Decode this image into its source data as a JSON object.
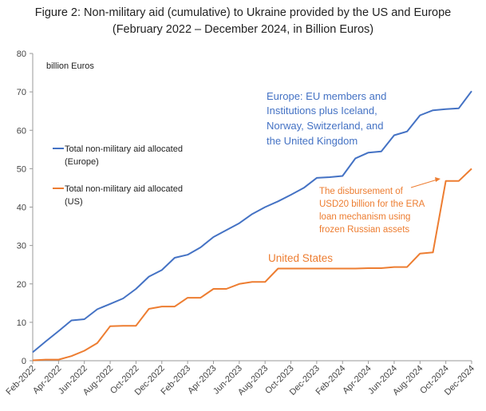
{
  "chart_data": {
    "type": "line",
    "title": "Figure 2: Non-military aid (cumulative) to Ukraine provided by the US and Europe",
    "subtitle": "(February 2022 – December 2024, in Billion Euros)",
    "ylabel": "billion Euros",
    "ylim": [
      0,
      80
    ],
    "yticks": [
      0,
      10,
      20,
      30,
      40,
      50,
      60,
      70,
      80
    ],
    "x": [
      "Feb-2022",
      "Mar-2022",
      "Apr-2022",
      "May-2022",
      "Jun-2022",
      "Jul-2022",
      "Aug-2022",
      "Sep-2022",
      "Oct-2022",
      "Nov-2022",
      "Dec-2022",
      "Jan-2023",
      "Feb-2023",
      "Mar-2023",
      "Apr-2023",
      "May-2023",
      "Jun-2023",
      "Jul-2023",
      "Aug-2023",
      "Sep-2023",
      "Oct-2023",
      "Nov-2023",
      "Dec-2023",
      "Jan-2024",
      "Feb-2024",
      "Mar-2024",
      "Apr-2024",
      "May-2024",
      "Jun-2024",
      "Jul-2024",
      "Aug-2024",
      "Sep-2024",
      "Oct-2024",
      "Nov-2024",
      "Dec-2024"
    ],
    "xtick_labels": [
      "Feb-2022",
      "Apr-2022",
      "Jun-2022",
      "Aug-2022",
      "Oct-2022",
      "Dec-2022",
      "Feb-2023",
      "Apr-2023",
      "Jun-2023",
      "Aug-2023",
      "Oct-2023",
      "Dec-2023",
      "Feb-2024",
      "Apr-2024",
      "Jun-2024",
      "Aug-2024",
      "Oct-2024",
      "Dec-2024"
    ],
    "series": [
      {
        "name": "Total non-military aid allocated (Europe)",
        "color": "#4472C4",
        "values": [
          2.2,
          5.0,
          7.7,
          10.5,
          10.8,
          13.4,
          14.8,
          16.2,
          18.7,
          21.9,
          23.6,
          26.8,
          27.6,
          29.5,
          32.2,
          34.0,
          35.8,
          38.2,
          40.0,
          41.5,
          43.2,
          45.0,
          47.6,
          47.8,
          48.1,
          52.7,
          54.2,
          54.5,
          58.7,
          59.7,
          63.9,
          65.2,
          65.5,
          65.7,
          70.2
        ]
      },
      {
        "name": "Total non-military aid allocated (US)",
        "color": "#ED7D31",
        "values": [
          0.1,
          0.3,
          0.3,
          1.2,
          2.6,
          4.6,
          9.0,
          9.1,
          9.1,
          13.5,
          14.1,
          14.1,
          16.4,
          16.4,
          18.7,
          18.7,
          20.0,
          20.5,
          20.5,
          24.0,
          24.0,
          24.0,
          24.0,
          24.0,
          24.0,
          24.0,
          24.1,
          24.1,
          24.4,
          24.4,
          27.9,
          28.2,
          46.8,
          46.8,
          50.0
        ]
      }
    ],
    "annotations": {
      "europe": [
        "Europe: EU members and",
        "Institutions plus Iceland,",
        "Norway, Switzerland, and",
        "the United Kingdom"
      ],
      "us": "United States",
      "era": [
        "The disbursement of",
        "USD20 billion for the ERA",
        "loan mechanism using",
        "frozen Russian assets"
      ]
    },
    "legend": {
      "position": "left",
      "items": [
        [
          "Total non-military aid allocated",
          "(Europe)"
        ],
        [
          "Total non-military aid allocated",
          "(US)"
        ]
      ]
    },
    "grid": false
  }
}
